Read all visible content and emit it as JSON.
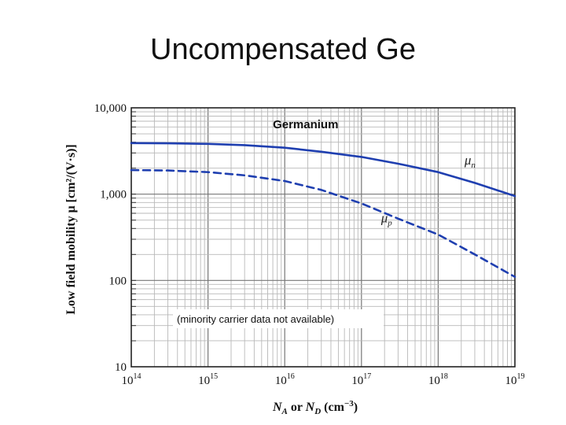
{
  "slide": {
    "title": "Uncompensated Ge"
  },
  "chart_data": {
    "type": "line",
    "title": "Germanium",
    "xscale": "log",
    "yscale": "log",
    "xlim": [
      100000000000000.0,
      1e+19
    ],
    "ylim": [
      10,
      10000
    ],
    "xlabel": "N_A or N_D (cm^-3)",
    "xlabel_parts": {
      "a": "N",
      "a_sub": "A",
      "or": " or ",
      "b": "N",
      "b_sub": "D",
      "unit_open": " (cm",
      "unit_exp": "−3",
      "unit_close": ")"
    },
    "ylabel": "Low field mobility μ [cm²/(V·s)]",
    "x_ticks": [
      {
        "value": 100000000000000.0,
        "base": "10",
        "exp": "14"
      },
      {
        "value": 1000000000000000.0,
        "base": "10",
        "exp": "15"
      },
      {
        "value": 1e+16,
        "base": "10",
        "exp": "16"
      },
      {
        "value": 1e+17,
        "base": "10",
        "exp": "17"
      },
      {
        "value": 1e+18,
        "base": "10",
        "exp": "18"
      },
      {
        "value": 1e+19,
        "base": "10",
        "exp": "19"
      }
    ],
    "y_ticks": [
      {
        "value": 10,
        "label": "10"
      },
      {
        "value": 100,
        "label": "100"
      },
      {
        "value": 1000,
        "label": "1,000"
      },
      {
        "value": 10000,
        "label": "10,000"
      }
    ],
    "series": [
      {
        "name": "μn",
        "label_main": "μ",
        "label_sub": "n",
        "style": "solid",
        "color": "#1f3fb0",
        "x": [
          100000000000000.0,
          300000000000000.0,
          1000000000000000.0,
          3000000000000000.0,
          1e+16,
          3e+16,
          1e+17,
          3e+17,
          1e+18,
          3e+18,
          1e+19
        ],
        "y": [
          3900,
          3880,
          3820,
          3700,
          3450,
          3100,
          2700,
          2250,
          1800,
          1350,
          950
        ]
      },
      {
        "name": "μp",
        "label_main": "μ",
        "label_sub": "p",
        "style": "dashed",
        "color": "#1f3fb0",
        "x": [
          100000000000000.0,
          300000000000000.0,
          1000000000000000.0,
          3000000000000000.0,
          1e+16,
          3e+16,
          1e+17,
          3e+17,
          1e+18,
          3e+18,
          1e+19
        ],
        "y": [
          1900,
          1880,
          1800,
          1650,
          1420,
          1120,
          780,
          520,
          340,
          200,
          110
        ]
      }
    ],
    "annotation": "(minority carrier data not available)"
  }
}
